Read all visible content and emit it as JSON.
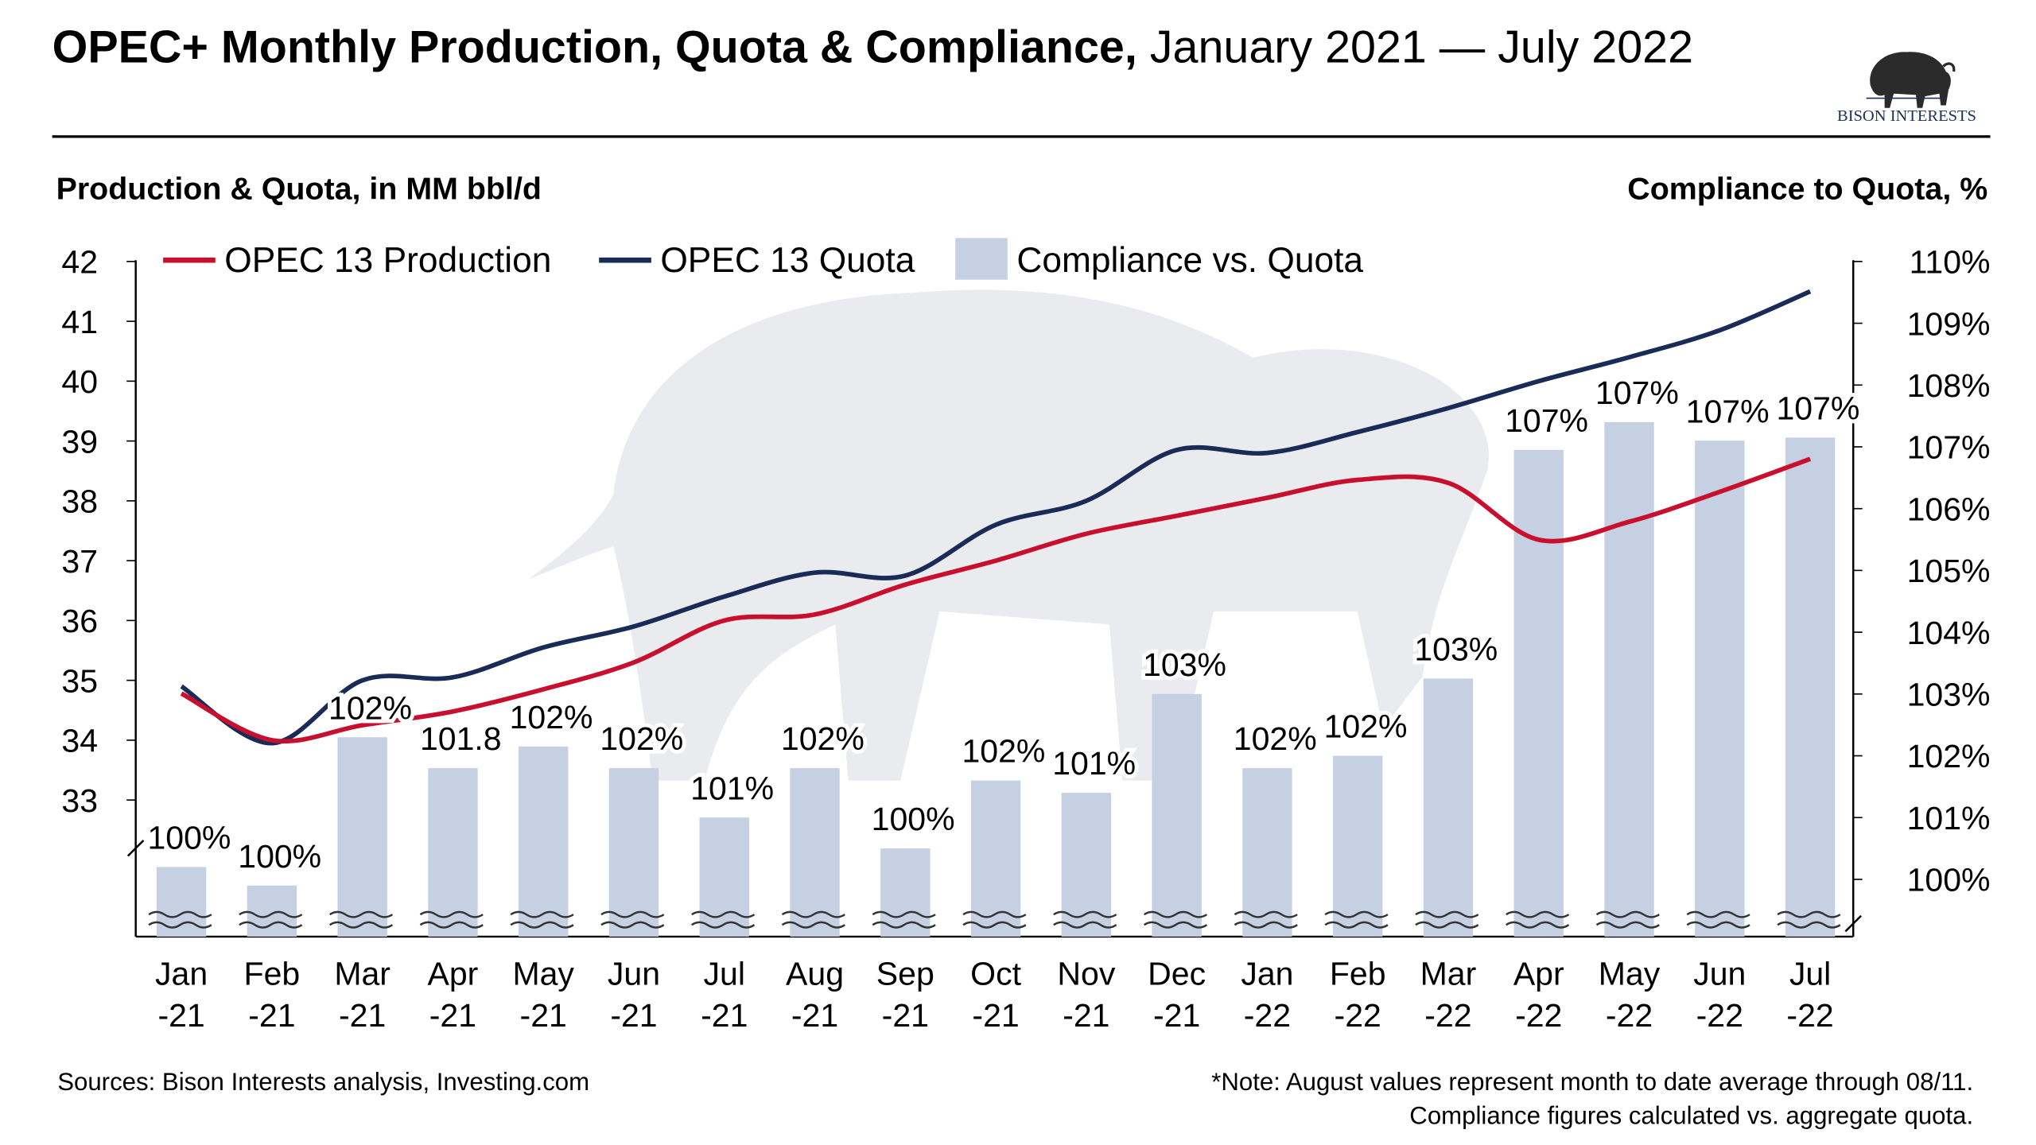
{
  "header": {
    "title_bold": "OPEC+ Monthly Production, Quota & Compliance,",
    "title_rest": " January 2021 — July 2022",
    "logo_text": "BISON INTERESTS",
    "left_axis_title": "Production & Quota, in MM bbl/d",
    "right_axis_title": "Compliance to Quota, %"
  },
  "footer": {
    "sources": "Sources: Bison Interests analysis, Investing.com",
    "note_line1": "*Note: August values represent month to date average through 08/11.",
    "note_line2": "Compliance figures calculated vs. aggregate quota."
  },
  "chart_data": {
    "type": "bar+line",
    "categories": [
      "Jan\n-21",
      "Feb\n-21",
      "Mar\n-21",
      "Apr\n-21",
      "May\n-21",
      "Jun\n-21",
      "Jul\n-21",
      "Aug\n-21",
      "Sep\n-21",
      "Oct\n-21",
      "Nov\n-21",
      "Dec\n-21",
      "Jan\n-22",
      "Feb\n-22",
      "Mar\n-22",
      "Apr\n-22",
      "May\n-22",
      "Jun\n-22",
      "Jul\n-22"
    ],
    "y_left": {
      "label": "Production & Quota, in MM bbl/d",
      "range": [
        33,
        42
      ],
      "ticks": [
        "33",
        "34",
        "35",
        "36",
        "37",
        "38",
        "39",
        "40",
        "41",
        "42"
      ],
      "broken_axis": true
    },
    "y_right": {
      "label": "Compliance to Quota, %",
      "range": [
        100,
        110
      ],
      "ticks": [
        "100%",
        "101%",
        "102%",
        "103%",
        "104%",
        "105%",
        "106%",
        "107%",
        "108%",
        "109%",
        "110%"
      ],
      "broken_axis": true
    },
    "legend": {
      "placement": "top-left",
      "entries": [
        "OPEC 13 Production",
        "OPEC 13 Quota",
        "Compliance vs. Quota"
      ]
    },
    "grid": false,
    "series": [
      {
        "name": "OPEC 13 Production",
        "type": "line",
        "axis": "left",
        "color": "#c8102e",
        "values": [
          34.78,
          34.0,
          34.25,
          34.48,
          34.85,
          35.3,
          36.0,
          36.1,
          36.6,
          37.0,
          37.45,
          37.75,
          38.05,
          38.35,
          38.3,
          37.35,
          37.65,
          38.15,
          38.7
        ]
      },
      {
        "name": "OPEC 13 Quota",
        "type": "line",
        "axis": "left",
        "color": "#1a2b57",
        "values": [
          34.9,
          33.95,
          35.0,
          35.05,
          35.55,
          35.9,
          36.4,
          36.8,
          36.75,
          37.6,
          38.0,
          38.85,
          38.8,
          39.15,
          39.55,
          40.0,
          40.4,
          40.85,
          41.5
        ]
      },
      {
        "name": "Compliance vs. Quota",
        "type": "bar",
        "axis": "right",
        "color": "#c5d0e2",
        "values": [
          100.2,
          99.9,
          102.3,
          101.8,
          102.15,
          101.8,
          101.0,
          101.8,
          100.5,
          101.6,
          101.4,
          103.0,
          101.8,
          102.0,
          103.25,
          106.95,
          107.4,
          107.1,
          107.15
        ],
        "labels": [
          "100%",
          "100%",
          "102%",
          "101.8",
          "102%",
          "102%",
          "101%",
          "102%",
          "100%",
          "102%",
          "101%",
          "103%",
          "102%",
          "102%",
          "103%",
          "107%",
          "107%",
          "107%",
          "107%"
        ]
      }
    ]
  }
}
